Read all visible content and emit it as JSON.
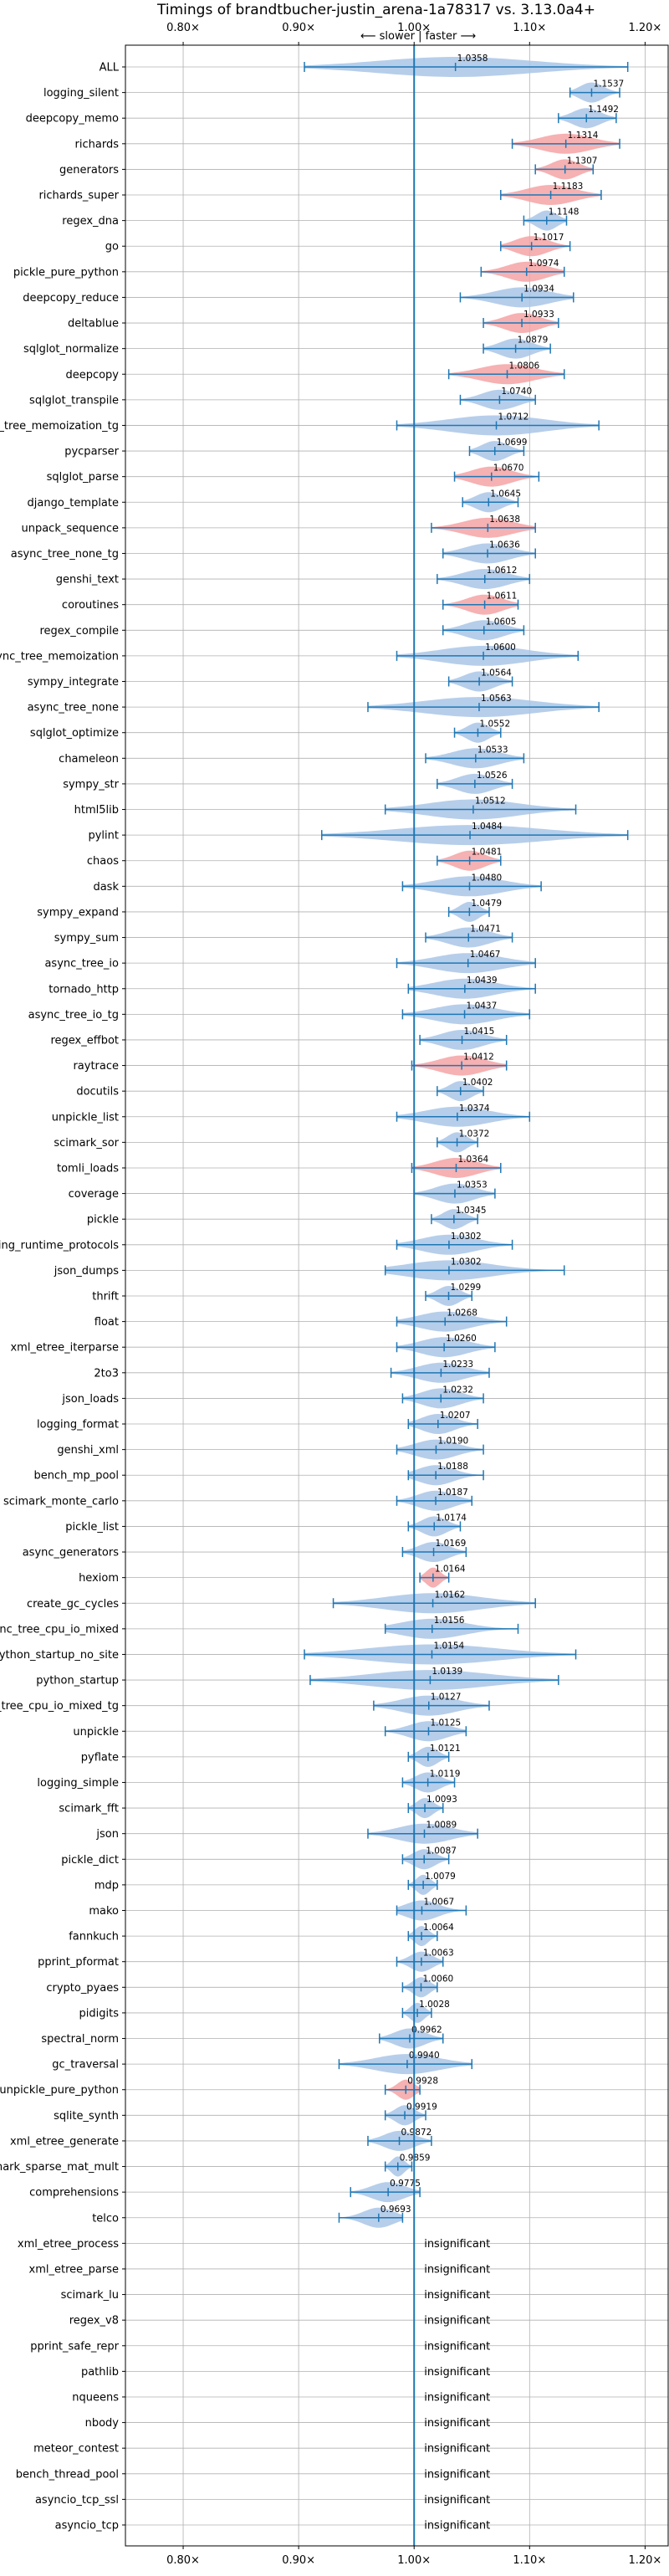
{
  "chart_data": {
    "type": "violin",
    "title": "Timings of brandtbucher-justin_arena-1a78317 vs. 3.13.0a4+",
    "subtitle": "⟵ slower | faster ⟶",
    "xlim": [
      0.75,
      1.22
    ],
    "xticks": [
      0.8,
      0.9,
      1.0,
      1.1,
      1.2
    ],
    "xtick_labels": [
      "0.80×",
      "0.90×",
      "1.00×",
      "1.10×",
      "1.20×"
    ],
    "reference_x": 1.0,
    "grid": true,
    "colors": {
      "normal": "#a9c6e6",
      "significant": "#f4a3a5",
      "line": "#1f77b4"
    },
    "insignificant_text": "insignificant",
    "benchmarks": [
      {
        "name": "ALL",
        "median": 1.0358,
        "min": 0.905,
        "max": 1.185,
        "sig": false
      },
      {
        "name": "logging_silent",
        "median": 1.1537,
        "min": 1.135,
        "max": 1.178,
        "sig": false
      },
      {
        "name": "deepcopy_memo",
        "median": 1.1492,
        "min": 1.125,
        "max": 1.175,
        "sig": false
      },
      {
        "name": "richards",
        "median": 1.1314,
        "min": 1.085,
        "max": 1.178,
        "sig": true
      },
      {
        "name": "generators",
        "median": 1.1307,
        "min": 1.105,
        "max": 1.155,
        "sig": true
      },
      {
        "name": "richards_super",
        "median": 1.1183,
        "min": 1.075,
        "max": 1.162,
        "sig": true
      },
      {
        "name": "regex_dna",
        "median": 1.1148,
        "min": 1.095,
        "max": 1.132,
        "sig": false
      },
      {
        "name": "go",
        "median": 1.1017,
        "min": 1.075,
        "max": 1.135,
        "sig": true
      },
      {
        "name": "pickle_pure_python",
        "median": 1.0974,
        "min": 1.058,
        "max": 1.13,
        "sig": true
      },
      {
        "name": "deepcopy_reduce",
        "median": 1.0934,
        "min": 1.04,
        "max": 1.138,
        "sig": false
      },
      {
        "name": "deltablue",
        "median": 1.0933,
        "min": 1.06,
        "max": 1.125,
        "sig": true
      },
      {
        "name": "sqlglot_normalize",
        "median": 1.0879,
        "min": 1.06,
        "max": 1.118,
        "sig": false
      },
      {
        "name": "deepcopy",
        "median": 1.0806,
        "min": 1.03,
        "max": 1.13,
        "sig": true
      },
      {
        "name": "sqlglot_transpile",
        "median": 1.074,
        "min": 1.04,
        "max": 1.105,
        "sig": false
      },
      {
        "name": "async_tree_memoization_tg",
        "median": 1.0712,
        "min": 0.985,
        "max": 1.16,
        "sig": false
      },
      {
        "name": "pycparser",
        "median": 1.0699,
        "min": 1.048,
        "max": 1.095,
        "sig": false
      },
      {
        "name": "sqlglot_parse",
        "median": 1.067,
        "min": 1.035,
        "max": 1.108,
        "sig": true
      },
      {
        "name": "django_template",
        "median": 1.0645,
        "min": 1.042,
        "max": 1.09,
        "sig": false
      },
      {
        "name": "unpack_sequence",
        "median": 1.0638,
        "min": 1.015,
        "max": 1.105,
        "sig": true
      },
      {
        "name": "async_tree_none_tg",
        "median": 1.0636,
        "min": 1.025,
        "max": 1.105,
        "sig": false
      },
      {
        "name": "genshi_text",
        "median": 1.0612,
        "min": 1.02,
        "max": 1.1,
        "sig": false
      },
      {
        "name": "coroutines",
        "median": 1.0611,
        "min": 1.025,
        "max": 1.09,
        "sig": true
      },
      {
        "name": "regex_compile",
        "median": 1.0605,
        "min": 1.025,
        "max": 1.095,
        "sig": false
      },
      {
        "name": "async_tree_memoization",
        "median": 1.06,
        "min": 0.985,
        "max": 1.142,
        "sig": false
      },
      {
        "name": "sympy_integrate",
        "median": 1.0564,
        "min": 1.03,
        "max": 1.085,
        "sig": false
      },
      {
        "name": "async_tree_none",
        "median": 1.0563,
        "min": 0.96,
        "max": 1.16,
        "sig": false
      },
      {
        "name": "sqlglot_optimize",
        "median": 1.0552,
        "min": 1.035,
        "max": 1.075,
        "sig": false
      },
      {
        "name": "chameleon",
        "median": 1.0533,
        "min": 1.01,
        "max": 1.095,
        "sig": false
      },
      {
        "name": "sympy_str",
        "median": 1.0526,
        "min": 1.02,
        "max": 1.085,
        "sig": false
      },
      {
        "name": "html5lib",
        "median": 1.0512,
        "min": 0.975,
        "max": 1.14,
        "sig": false
      },
      {
        "name": "pylint",
        "median": 1.0484,
        "min": 0.92,
        "max": 1.185,
        "sig": false
      },
      {
        "name": "chaos",
        "median": 1.0481,
        "min": 1.02,
        "max": 1.075,
        "sig": true
      },
      {
        "name": "dask",
        "median": 1.048,
        "min": 0.99,
        "max": 1.11,
        "sig": false
      },
      {
        "name": "sympy_expand",
        "median": 1.0479,
        "min": 1.03,
        "max": 1.065,
        "sig": false
      },
      {
        "name": "sympy_sum",
        "median": 1.0471,
        "min": 1.01,
        "max": 1.085,
        "sig": false
      },
      {
        "name": "async_tree_io",
        "median": 1.0467,
        "min": 0.985,
        "max": 1.105,
        "sig": false
      },
      {
        "name": "tornado_http",
        "median": 1.0439,
        "min": 0.995,
        "max": 1.105,
        "sig": false
      },
      {
        "name": "async_tree_io_tg",
        "median": 1.0437,
        "min": 0.99,
        "max": 1.1,
        "sig": false
      },
      {
        "name": "regex_effbot",
        "median": 1.0415,
        "min": 1.005,
        "max": 1.08,
        "sig": false
      },
      {
        "name": "raytrace",
        "median": 1.0412,
        "min": 0.998,
        "max": 1.08,
        "sig": true
      },
      {
        "name": "docutils",
        "median": 1.0402,
        "min": 1.02,
        "max": 1.06,
        "sig": false
      },
      {
        "name": "unpickle_list",
        "median": 1.0374,
        "min": 0.985,
        "max": 1.1,
        "sig": false
      },
      {
        "name": "scimark_sor",
        "median": 1.0372,
        "min": 1.02,
        "max": 1.055,
        "sig": false
      },
      {
        "name": "tomli_loads",
        "median": 1.0364,
        "min": 0.998,
        "max": 1.075,
        "sig": true
      },
      {
        "name": "coverage",
        "median": 1.0353,
        "min": 1.0,
        "max": 1.07,
        "sig": false
      },
      {
        "name": "pickle",
        "median": 1.0345,
        "min": 1.015,
        "max": 1.055,
        "sig": false
      },
      {
        "name": "typing_runtime_protocols",
        "median": 1.0302,
        "min": 0.985,
        "max": 1.085,
        "sig": false
      },
      {
        "name": "json_dumps",
        "median": 1.0302,
        "min": 0.975,
        "max": 1.13,
        "sig": false
      },
      {
        "name": "thrift",
        "median": 1.0299,
        "min": 1.01,
        "max": 1.05,
        "sig": false
      },
      {
        "name": "float",
        "median": 1.0268,
        "min": 0.985,
        "max": 1.08,
        "sig": false
      },
      {
        "name": "xml_etree_iterparse",
        "median": 1.026,
        "min": 0.985,
        "max": 1.07,
        "sig": false
      },
      {
        "name": "2to3",
        "median": 1.0233,
        "min": 0.98,
        "max": 1.065,
        "sig": false
      },
      {
        "name": "json_loads",
        "median": 1.0232,
        "min": 0.99,
        "max": 1.06,
        "sig": false
      },
      {
        "name": "logging_format",
        "median": 1.0207,
        "min": 0.995,
        "max": 1.055,
        "sig": false
      },
      {
        "name": "genshi_xml",
        "median": 1.019,
        "min": 0.985,
        "max": 1.06,
        "sig": false
      },
      {
        "name": "bench_mp_pool",
        "median": 1.0188,
        "min": 0.995,
        "max": 1.06,
        "sig": false
      },
      {
        "name": "scimark_monte_carlo",
        "median": 1.0187,
        "min": 0.985,
        "max": 1.05,
        "sig": false
      },
      {
        "name": "pickle_list",
        "median": 1.0174,
        "min": 0.995,
        "max": 1.04,
        "sig": false
      },
      {
        "name": "async_generators",
        "median": 1.0169,
        "min": 0.99,
        "max": 1.045,
        "sig": false
      },
      {
        "name": "hexiom",
        "median": 1.0164,
        "min": 1.005,
        "max": 1.03,
        "sig": true
      },
      {
        "name": "create_gc_cycles",
        "median": 1.0162,
        "min": 0.93,
        "max": 1.105,
        "sig": false
      },
      {
        "name": "async_tree_cpu_io_mixed",
        "median": 1.0156,
        "min": 0.975,
        "max": 1.09,
        "sig": false
      },
      {
        "name": "python_startup_no_site",
        "median": 1.0154,
        "min": 0.905,
        "max": 1.14,
        "sig": false
      },
      {
        "name": "python_startup",
        "median": 1.0139,
        "min": 0.91,
        "max": 1.125,
        "sig": false
      },
      {
        "name": "async_tree_cpu_io_mixed_tg",
        "median": 1.0127,
        "min": 0.965,
        "max": 1.065,
        "sig": false
      },
      {
        "name": "unpickle",
        "median": 1.0125,
        "min": 0.975,
        "max": 1.045,
        "sig": false
      },
      {
        "name": "pyflate",
        "median": 1.0121,
        "min": 0.995,
        "max": 1.03,
        "sig": false
      },
      {
        "name": "logging_simple",
        "median": 1.0119,
        "min": 0.99,
        "max": 1.035,
        "sig": false
      },
      {
        "name": "scimark_fft",
        "median": 1.0093,
        "min": 0.995,
        "max": 1.025,
        "sig": false
      },
      {
        "name": "json",
        "median": 1.0089,
        "min": 0.96,
        "max": 1.055,
        "sig": false
      },
      {
        "name": "pickle_dict",
        "median": 1.0087,
        "min": 0.99,
        "max": 1.03,
        "sig": false
      },
      {
        "name": "mdp",
        "median": 1.0079,
        "min": 0.995,
        "max": 1.02,
        "sig": false
      },
      {
        "name": "mako",
        "median": 1.0067,
        "min": 0.985,
        "max": 1.045,
        "sig": false
      },
      {
        "name": "fannkuch",
        "median": 1.0064,
        "min": 0.995,
        "max": 1.02,
        "sig": false
      },
      {
        "name": "pprint_pformat",
        "median": 1.0063,
        "min": 0.985,
        "max": 1.025,
        "sig": false
      },
      {
        "name": "crypto_pyaes",
        "median": 1.006,
        "min": 0.99,
        "max": 1.02,
        "sig": false
      },
      {
        "name": "pidigits",
        "median": 1.0028,
        "min": 0.99,
        "max": 1.015,
        "sig": false
      },
      {
        "name": "spectral_norm",
        "median": 0.9962,
        "min": 0.97,
        "max": 1.025,
        "sig": false
      },
      {
        "name": "gc_traversal",
        "median": 0.994,
        "min": 0.935,
        "max": 1.05,
        "sig": false
      },
      {
        "name": "unpickle_pure_python",
        "median": 0.9928,
        "min": 0.975,
        "max": 1.005,
        "sig": true
      },
      {
        "name": "sqlite_synth",
        "median": 0.9919,
        "min": 0.975,
        "max": 1.01,
        "sig": false
      },
      {
        "name": "xml_etree_generate",
        "median": 0.9872,
        "min": 0.96,
        "max": 1.015,
        "sig": false
      },
      {
        "name": "scimark_sparse_mat_mult",
        "median": 0.9859,
        "min": 0.975,
        "max": 0.998,
        "sig": false
      },
      {
        "name": "comprehensions",
        "median": 0.9775,
        "min": 0.945,
        "max": 1.005,
        "sig": false
      },
      {
        "name": "telco",
        "median": 0.9693,
        "min": 0.935,
        "max": 0.99,
        "sig": false
      },
      {
        "name": "xml_etree_process",
        "insignificant": true
      },
      {
        "name": "xml_etree_parse",
        "insignificant": true
      },
      {
        "name": "scimark_lu",
        "insignificant": true
      },
      {
        "name": "regex_v8",
        "insignificant": true
      },
      {
        "name": "pprint_safe_repr",
        "insignificant": true
      },
      {
        "name": "pathlib",
        "insignificant": true
      },
      {
        "name": "nqueens",
        "insignificant": true
      },
      {
        "name": "nbody",
        "insignificant": true
      },
      {
        "name": "meteor_contest",
        "insignificant": true
      },
      {
        "name": "bench_thread_pool",
        "insignificant": true
      },
      {
        "name": "asyncio_tcp_ssl",
        "insignificant": true
      },
      {
        "name": "asyncio_tcp",
        "insignificant": true
      }
    ]
  }
}
